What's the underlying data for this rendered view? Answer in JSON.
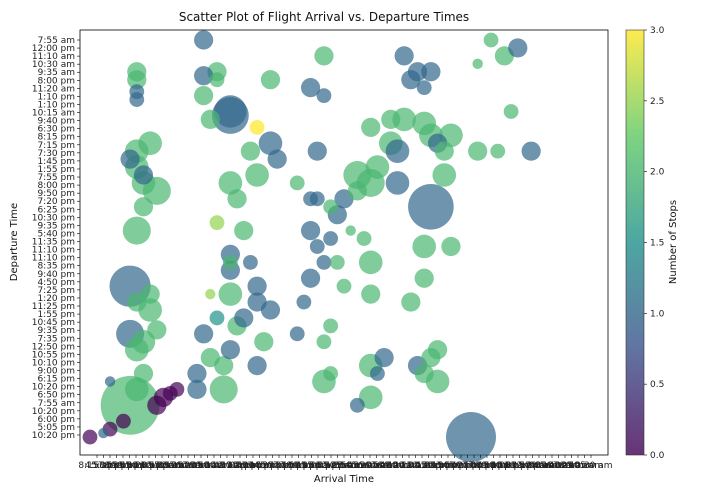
{
  "chart_data": {
    "type": "scatter",
    "title": "Scatter Plot of Flight Arrival vs. Departure Times",
    "xlabel": "Arrival Time",
    "ylabel": "Departure Time",
    "colorbar": {
      "label": "Number of Stops",
      "range": [
        0.0,
        3.0
      ],
      "ticks": [
        "0.0",
        "0.5",
        "1.0",
        "1.5",
        "2.0",
        "2.5",
        "3.0"
      ],
      "colormap": [
        "#440154",
        "#3b528b",
        "#21918c",
        "#5ec962",
        "#fde725"
      ]
    },
    "y_tick_labels": [
      "10:20 pm",
      "5:05 pm",
      "6:00 pm",
      "10:20 pm",
      "7:55 am",
      "6:50 pm",
      "10:20 pm",
      "6:15 pm",
      "9:00 pm",
      "10:10 pm",
      "10:55 pm",
      "12:50 pm",
      "7:35 pm",
      "9:35 pm",
      "10:45 pm",
      "1:55 pm",
      "11:25 pm",
      "1:20 pm",
      "7:25 pm",
      "4:50 pm",
      "9:40 pm",
      "8:35 pm",
      "11:10 pm",
      "11:10 pm",
      "11:35 pm",
      "5:40 pm",
      "9:35 pm",
      "10:30 pm",
      "6:25 pm",
      "7:20 pm",
      "9:50 pm",
      "8:00 pm",
      "7:55 pm",
      "1:55 pm",
      "1:45 pm",
      "7:30 pm",
      "7:15 pm",
      "8:15 pm",
      "6:30 pm",
      "9:40 pm",
      "10:15 am",
      "1:10 pm",
      "1:10 pm",
      "11:20 am",
      "8:00 pm",
      "9:35 am",
      "10:30 am",
      "11:10 am",
      "12:00 pm",
      "7:55 am"
    ],
    "x_tick_labels": [
      "8:15 am",
      "4:50 pm",
      "5:30 pm",
      "7:55 pm",
      "8:35 pm",
      "9:05 pm",
      "9:50 pm",
      "10:20 pm",
      "11:05 pm",
      "11:55 pm",
      "12:40 am",
      "1:15 am",
      "2:10 am",
      "3:35 am",
      "5:05 am",
      "6:20 am",
      "7:35 am",
      "8:50 am",
      "9:30 am",
      "10:40 am",
      "11:30 am",
      "12:10 pm",
      "1:05 pm",
      "1:40 pm",
      "2:20 pm",
      "3:10 pm",
      "3:55 pm",
      "4:25 pm",
      "5:45 pm",
      "6:35 pm",
      "7:10 pm",
      "7:50 pm",
      "8:25 pm",
      "9:15 pm",
      "10:05 pm",
      "10:45 pm",
      "11:20 pm",
      "12:25 am",
      "1:35 am",
      "2:50 am",
      "3:45 am",
      "4:35 am",
      "5:20 am",
      "6:05 am",
      "6:50 am",
      "7:40 am",
      "8:30 am",
      "9:20 am",
      "10:10 am",
      "11:00 am",
      "11:45 am",
      "12:30 pm",
      "1:25 pm",
      "2:15 pm",
      "3:00 pm",
      "3:50 pm",
      "4:40 pm",
      "5:25 pm",
      "6:10 pm",
      "7:00 pm",
      "7:45 pm",
      "8:30 pm",
      "9:10 pm",
      "10:00 pm",
      "10:30 pm",
      "11:15 pm",
      "11:50 pm",
      "12:20 am",
      "1:00 am",
      "2:30 am",
      "4:10 am",
      "5:40 am",
      "6:30 am",
      "7:25 am",
      "8:10 am",
      "9:05 am",
      "10:30 am"
    ],
    "xlim": [
      0,
      76
    ],
    "ylim": [
      -1,
      50
    ],
    "marker_alpha": 0.7,
    "points": [
      {
        "x": 0,
        "y": 0,
        "stops": 0,
        "size": 2
      },
      {
        "x": 3,
        "y": 1,
        "stops": 0,
        "size": 2
      },
      {
        "x": 5,
        "y": 2,
        "stops": 0,
        "size": 2
      },
      {
        "x": 2,
        "y": 0.5,
        "stops": 1,
        "size": 1
      },
      {
        "x": 10,
        "y": 4,
        "stops": 0,
        "size": 3
      },
      {
        "x": 11,
        "y": 5,
        "stops": 0,
        "size": 3
      },
      {
        "x": 12,
        "y": 5.5,
        "stops": 0,
        "size": 2
      },
      {
        "x": 13,
        "y": 6,
        "stops": 0,
        "size": 2
      },
      {
        "x": 6,
        "y": 4,
        "stops": 2,
        "size": 12
      },
      {
        "x": 7,
        "y": 6,
        "stops": 2,
        "size": 4
      },
      {
        "x": 8,
        "y": 8,
        "stops": 2,
        "size": 3
      },
      {
        "x": 3,
        "y": 7,
        "stops": 1,
        "size": 1
      },
      {
        "x": 7,
        "y": 11,
        "stops": 2,
        "size": 4
      },
      {
        "x": 8,
        "y": 12,
        "stops": 2,
        "size": 4
      },
      {
        "x": 6,
        "y": 13,
        "stops": 1,
        "size": 5
      },
      {
        "x": 10,
        "y": 13.5,
        "stops": 2,
        "size": 3
      },
      {
        "x": 9,
        "y": 16,
        "stops": 2,
        "size": 4
      },
      {
        "x": 7,
        "y": 17,
        "stops": 2,
        "size": 3
      },
      {
        "x": 9,
        "y": 18,
        "stops": 2,
        "size": 3
      },
      {
        "x": 6,
        "y": 19,
        "stops": 1,
        "size": 8
      },
      {
        "x": 7,
        "y": 26,
        "stops": 2,
        "size": 5
      },
      {
        "x": 8,
        "y": 29,
        "stops": 2,
        "size": 3
      },
      {
        "x": 10,
        "y": 31,
        "stops": 2,
        "size": 5
      },
      {
        "x": 8,
        "y": 32,
        "stops": 2,
        "size": 4
      },
      {
        "x": 7,
        "y": 34,
        "stops": 2,
        "size": 4
      },
      {
        "x": 7,
        "y": 36,
        "stops": 2,
        "size": 4
      },
      {
        "x": 9,
        "y": 37,
        "stops": 2,
        "size": 4
      },
      {
        "x": 6,
        "y": 35,
        "stops": 1,
        "size": 3
      },
      {
        "x": 8,
        "y": 33,
        "stops": 1,
        "size": 3
      },
      {
        "x": 7,
        "y": 42.5,
        "stops": 1,
        "size": 2
      },
      {
        "x": 7,
        "y": 43.5,
        "stops": 1,
        "size": 2
      },
      {
        "x": 7,
        "y": 45,
        "stops": 2,
        "size": 3
      },
      {
        "x": 7,
        "y": 46,
        "stops": 2,
        "size": 3
      },
      {
        "x": 16,
        "y": 6,
        "stops": 1,
        "size": 3
      },
      {
        "x": 16,
        "y": 8,
        "stops": 1,
        "size": 3
      },
      {
        "x": 18,
        "y": 10,
        "stops": 2,
        "size": 3
      },
      {
        "x": 17,
        "y": 13,
        "stops": 1,
        "size": 3
      },
      {
        "x": 18,
        "y": 18,
        "stops": 2.5,
        "size": 1
      },
      {
        "x": 19,
        "y": 15,
        "stops": 1.5,
        "size": 2
      },
      {
        "x": 21,
        "y": 22,
        "stops": 2,
        "size": 2
      },
      {
        "x": 19,
        "y": 27,
        "stops": 2.5,
        "size": 2
      },
      {
        "x": 18,
        "y": 40,
        "stops": 2,
        "size": 3
      },
      {
        "x": 17,
        "y": 43,
        "stops": 2,
        "size": 3
      },
      {
        "x": 19,
        "y": 45,
        "stops": 2,
        "size": 2
      },
      {
        "x": 19,
        "y": 46,
        "stops": 2,
        "size": 3
      },
      {
        "x": 17,
        "y": 50,
        "stops": 1,
        "size": 3
      },
      {
        "x": 17,
        "y": 45.5,
        "stops": 1,
        "size": 3
      },
      {
        "x": 21,
        "y": 41,
        "stops": 1,
        "size": 6
      },
      {
        "x": 21,
        "y": 40.5,
        "stops": 1,
        "size": 7
      },
      {
        "x": 25,
        "y": 39,
        "stops": 3,
        "size": 2
      },
      {
        "x": 20,
        "y": 6,
        "stops": 2,
        "size": 5
      },
      {
        "x": 20,
        "y": 9,
        "stops": 2,
        "size": 3
      },
      {
        "x": 21,
        "y": 11,
        "stops": 1,
        "size": 3
      },
      {
        "x": 22,
        "y": 14,
        "stops": 2,
        "size": 3
      },
      {
        "x": 23,
        "y": 15,
        "stops": 1,
        "size": 3
      },
      {
        "x": 21,
        "y": 18,
        "stops": 2,
        "size": 4
      },
      {
        "x": 21,
        "y": 21,
        "stops": 1,
        "size": 3
      },
      {
        "x": 21,
        "y": 23,
        "stops": 1,
        "size": 3
      },
      {
        "x": 23,
        "y": 26,
        "stops": 2,
        "size": 3
      },
      {
        "x": 22,
        "y": 30,
        "stops": 2,
        "size": 3
      },
      {
        "x": 21,
        "y": 32,
        "stops": 2,
        "size": 4
      },
      {
        "x": 25,
        "y": 17,
        "stops": 1,
        "size": 3
      },
      {
        "x": 25,
        "y": 19,
        "stops": 1,
        "size": 3
      },
      {
        "x": 27,
        "y": 16,
        "stops": 1,
        "size": 3
      },
      {
        "x": 24,
        "y": 22,
        "stops": 1,
        "size": 2
      },
      {
        "x": 26,
        "y": 12,
        "stops": 2,
        "size": 3
      },
      {
        "x": 25,
        "y": 9,
        "stops": 1,
        "size": 3
      },
      {
        "x": 25,
        "y": 33,
        "stops": 2,
        "size": 4
      },
      {
        "x": 27,
        "y": 37,
        "stops": 1,
        "size": 4
      },
      {
        "x": 27,
        "y": 45,
        "stops": 2,
        "size": 3
      },
      {
        "x": 24,
        "y": 36,
        "stops": 2,
        "size": 3
      },
      {
        "x": 28,
        "y": 35,
        "stops": 1,
        "size": 3
      },
      {
        "x": 33,
        "y": 44,
        "stops": 1,
        "size": 3
      },
      {
        "x": 34,
        "y": 36,
        "stops": 1,
        "size": 3
      },
      {
        "x": 35,
        "y": 43,
        "stops": 1,
        "size": 2
      },
      {
        "x": 35,
        "y": 48,
        "stops": 2,
        "size": 3
      },
      {
        "x": 33,
        "y": 30,
        "stops": 1,
        "size": 2
      },
      {
        "x": 33,
        "y": 26,
        "stops": 1,
        "size": 3
      },
      {
        "x": 34,
        "y": 24,
        "stops": 1,
        "size": 2
      },
      {
        "x": 35,
        "y": 22,
        "stops": 1,
        "size": 2
      },
      {
        "x": 33,
        "y": 20,
        "stops": 1,
        "size": 3
      },
      {
        "x": 32,
        "y": 17,
        "stops": 1,
        "size": 2
      },
      {
        "x": 31,
        "y": 13,
        "stops": 1,
        "size": 2
      },
      {
        "x": 35,
        "y": 12,
        "stops": 2,
        "size": 2
      },
      {
        "x": 36,
        "y": 14,
        "stops": 2,
        "size": 2
      },
      {
        "x": 35,
        "y": 7,
        "stops": 2,
        "size": 4
      },
      {
        "x": 36,
        "y": 8,
        "stops": 2,
        "size": 2
      },
      {
        "x": 31,
        "y": 32,
        "stops": 2,
        "size": 2
      },
      {
        "x": 34,
        "y": 30,
        "stops": 1,
        "size": 2
      },
      {
        "x": 36,
        "y": 29,
        "stops": 2,
        "size": 2
      },
      {
        "x": 37,
        "y": 28,
        "stops": 1,
        "size": 3
      },
      {
        "x": 36,
        "y": 25,
        "stops": 1,
        "size": 2
      },
      {
        "x": 38,
        "y": 19,
        "stops": 2,
        "size": 2
      },
      {
        "x": 37,
        "y": 22,
        "stops": 2,
        "size": 2
      },
      {
        "x": 40,
        "y": 33,
        "stops": 2,
        "size": 5
      },
      {
        "x": 42,
        "y": 32,
        "stops": 2,
        "size": 5
      },
      {
        "x": 43,
        "y": 34,
        "stops": 2,
        "size": 4
      },
      {
        "x": 42,
        "y": 39,
        "stops": 2,
        "size": 3
      },
      {
        "x": 45,
        "y": 37,
        "stops": 2,
        "size": 4
      },
      {
        "x": 45,
        "y": 40,
        "stops": 2,
        "size": 3
      },
      {
        "x": 46,
        "y": 36,
        "stops": 1,
        "size": 4
      },
      {
        "x": 39,
        "y": 26,
        "stops": 2,
        "size": 1
      },
      {
        "x": 41,
        "y": 25,
        "stops": 2,
        "size": 2
      },
      {
        "x": 42,
        "y": 22,
        "stops": 2,
        "size": 4
      },
      {
        "x": 42,
        "y": 18,
        "stops": 2,
        "size": 3
      },
      {
        "x": 42,
        "y": 9,
        "stops": 2,
        "size": 4
      },
      {
        "x": 42,
        "y": 5,
        "stops": 2,
        "size": 4
      },
      {
        "x": 40,
        "y": 4,
        "stops": 1,
        "size": 2
      },
      {
        "x": 43,
        "y": 8,
        "stops": 1,
        "size": 2
      },
      {
        "x": 44,
        "y": 10,
        "stops": 1,
        "size": 3
      },
      {
        "x": 46,
        "y": 32,
        "stops": 1,
        "size": 4
      },
      {
        "x": 48,
        "y": 45,
        "stops": 1,
        "size": 3
      },
      {
        "x": 50,
        "y": 39.5,
        "stops": 2,
        "size": 4
      },
      {
        "x": 51,
        "y": 38,
        "stops": 2,
        "size": 4
      },
      {
        "x": 52,
        "y": 37,
        "stops": 1,
        "size": 3
      },
      {
        "x": 51,
        "y": 29,
        "stops": 1,
        "size": 9
      },
      {
        "x": 53,
        "y": 33,
        "stops": 2,
        "size": 4
      },
      {
        "x": 50,
        "y": 20,
        "stops": 2,
        "size": 3
      },
      {
        "x": 50,
        "y": 24,
        "stops": 2,
        "size": 4
      },
      {
        "x": 48,
        "y": 17,
        "stops": 2,
        "size": 3
      },
      {
        "x": 49,
        "y": 9,
        "stops": 1,
        "size": 3
      },
      {
        "x": 50,
        "y": 8,
        "stops": 2,
        "size": 3
      },
      {
        "x": 51,
        "y": 10,
        "stops": 2,
        "size": 3
      },
      {
        "x": 52,
        "y": 11,
        "stops": 2,
        "size": 3
      },
      {
        "x": 52,
        "y": 7,
        "stops": 2,
        "size": 4
      },
      {
        "x": 49,
        "y": 46,
        "stops": 1,
        "size": 3
      },
      {
        "x": 50,
        "y": 44,
        "stops": 1,
        "size": 2
      },
      {
        "x": 51,
        "y": 46,
        "stops": 1,
        "size": 3
      },
      {
        "x": 53,
        "y": 36,
        "stops": 2,
        "size": 3
      },
      {
        "x": 54,
        "y": 38,
        "stops": 2,
        "size": 4
      },
      {
        "x": 54,
        "y": 24,
        "stops": 2,
        "size": 3
      },
      {
        "x": 58,
        "y": 36,
        "stops": 2,
        "size": 3
      },
      {
        "x": 57,
        "y": 0,
        "stops": 1,
        "size": 10
      },
      {
        "x": 58,
        "y": 47,
        "stops": 2,
        "size": 1
      },
      {
        "x": 60,
        "y": 50,
        "stops": 2,
        "size": 2
      },
      {
        "x": 62,
        "y": 48,
        "stops": 2,
        "size": 3
      },
      {
        "x": 63,
        "y": 41,
        "stops": 2,
        "size": 2
      },
      {
        "x": 66,
        "y": 36,
        "stops": 1,
        "size": 3
      },
      {
        "x": 64,
        "y": 49,
        "stops": 1,
        "size": 3
      },
      {
        "x": 61,
        "y": 36,
        "stops": 2,
        "size": 2
      },
      {
        "x": 47,
        "y": 48,
        "stops": 1,
        "size": 3
      },
      {
        "x": 47,
        "y": 40,
        "stops": 2,
        "size": 4
      },
      {
        "x": 38,
        "y": 30,
        "stops": 1,
        "size": 3
      },
      {
        "x": 40,
        "y": 31,
        "stops": 2,
        "size": 3
      }
    ]
  }
}
